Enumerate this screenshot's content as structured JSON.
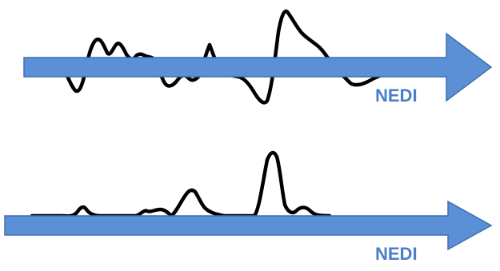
{
  "colors": {
    "background": "#ffffff",
    "waveform": "#000000",
    "arrow_fill": "#5b8fd6",
    "arrow_stroke": "#3f6fb0",
    "label": "#4a7fc8"
  },
  "panels": [
    {
      "label": "NEDI"
    },
    {
      "label": "NEDI"
    }
  ]
}
